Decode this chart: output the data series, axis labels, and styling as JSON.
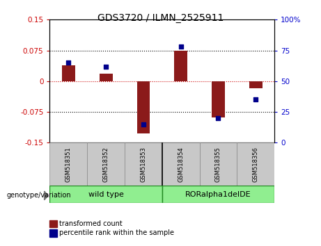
{
  "title": "GDS3720 / ILMN_2525911",
  "samples": [
    "GSM518351",
    "GSM518352",
    "GSM518353",
    "GSM518354",
    "GSM518355",
    "GSM518356"
  ],
  "transformed_count": [
    0.038,
    0.018,
    -0.128,
    0.075,
    -0.088,
    -0.018
  ],
  "percentile_rank": [
    65,
    62,
    15,
    78,
    20,
    35
  ],
  "ylim_left": [
    -0.15,
    0.15
  ],
  "ylim_right": [
    0,
    100
  ],
  "bar_color": "#8B1A1A",
  "dot_color": "#00008B",
  "group1_label": "wild type",
  "group2_label": "RORalpha1delDE",
  "group_color": "#90EE90",
  "group_border_color": "#228B22",
  "tick_color_left": "#CC0000",
  "tick_color_right": "#0000CC",
  "legend_red_label": "transformed count",
  "legend_blue_label": "percentile rank within the sample",
  "genotype_label": "genotype/variation",
  "yticks_left": [
    -0.15,
    -0.075,
    0,
    0.075,
    0.15
  ],
  "yticks_right": [
    0,
    25,
    50,
    75,
    100
  ],
  "hlines_dotted": [
    -0.075,
    0.075
  ],
  "hline_red": 0,
  "bar_width": 0.35,
  "sample_box_color": "#C8C8C8",
  "figure_bg": "#ffffff"
}
